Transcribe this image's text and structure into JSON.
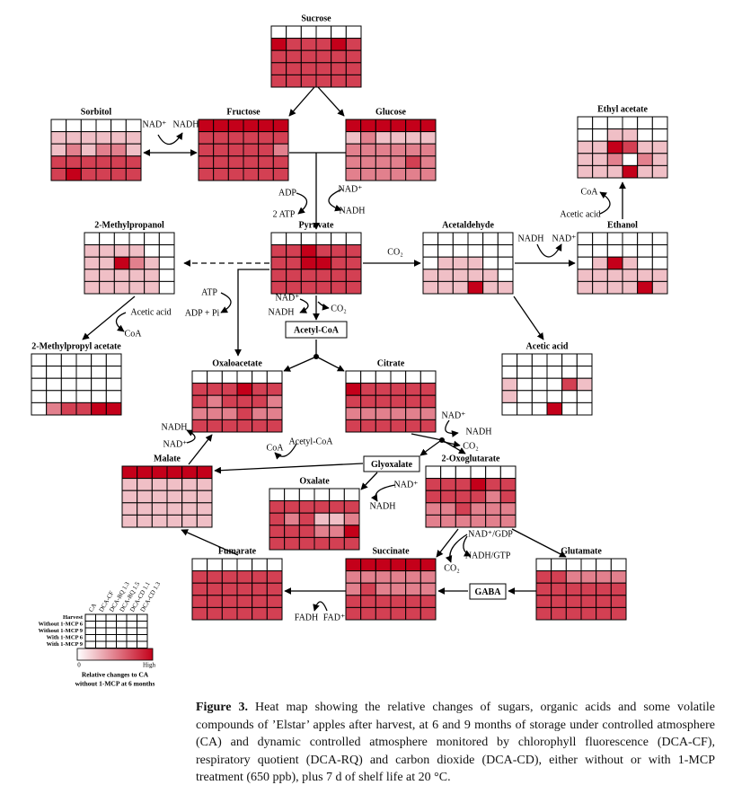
{
  "heatmaps": [
    {
      "name": "Sucrose",
      "levels": [
        [
          0,
          0,
          0,
          0,
          0,
          0
        ],
        [
          4,
          3,
          3,
          3,
          4,
          3
        ],
        [
          3,
          3,
          3,
          3,
          3,
          3
        ],
        [
          3,
          3,
          3,
          3,
          3,
          3
        ],
        [
          3,
          3,
          3,
          3,
          3,
          3
        ]
      ]
    },
    {
      "name": "Sorbitol",
      "levels": [
        [
          0,
          0,
          0,
          0,
          0,
          0
        ],
        [
          1,
          1,
          1,
          1,
          1,
          1
        ],
        [
          1,
          2,
          1,
          2,
          2,
          1
        ],
        [
          3,
          3,
          3,
          3,
          3,
          3
        ],
        [
          3,
          4,
          3,
          3,
          3,
          3
        ]
      ]
    },
    {
      "name": "Fructose",
      "levels": [
        [
          4,
          4,
          4,
          4,
          4,
          4
        ],
        [
          3,
          3,
          3,
          3,
          3,
          3
        ],
        [
          3,
          3,
          3,
          3,
          3,
          2
        ],
        [
          3,
          3,
          3,
          3,
          3,
          3
        ],
        [
          3,
          3,
          3,
          3,
          3,
          3
        ]
      ]
    },
    {
      "name": "Glucose",
      "levels": [
        [
          4,
          4,
          4,
          4,
          4,
          4
        ],
        [
          1,
          2,
          1,
          1,
          1,
          1
        ],
        [
          2,
          2,
          2,
          2,
          2,
          2
        ],
        [
          2,
          2,
          2,
          2,
          3,
          2
        ],
        [
          2,
          2,
          2,
          2,
          2,
          2
        ]
      ]
    },
    {
      "name": "Ethyl acetate",
      "levels": [
        [
          0,
          0,
          0,
          0,
          0,
          0
        ],
        [
          0,
          0,
          1,
          1,
          0,
          0
        ],
        [
          1,
          1,
          4,
          3,
          1,
          1
        ],
        [
          1,
          1,
          2,
          0,
          2,
          1
        ],
        [
          1,
          1,
          1,
          4,
          1,
          1
        ]
      ]
    },
    {
      "name": "2-Methylpropanol",
      "levels": [
        [
          0,
          0,
          0,
          0,
          0,
          0
        ],
        [
          1,
          1,
          1,
          1,
          0,
          0
        ],
        [
          1,
          1,
          4,
          2,
          1,
          0
        ],
        [
          1,
          1,
          1,
          1,
          1,
          0
        ],
        [
          1,
          1,
          1,
          1,
          1,
          0
        ]
      ]
    },
    {
      "name": "Pyruvate",
      "levels": [
        [
          0,
          0,
          0,
          0,
          0,
          0
        ],
        [
          3,
          3,
          4,
          3,
          3,
          3
        ],
        [
          3,
          3,
          4,
          4,
          3,
          3
        ],
        [
          3,
          3,
          3,
          3,
          3,
          3
        ],
        [
          3,
          3,
          3,
          3,
          3,
          3
        ]
      ]
    },
    {
      "name": "Acetaldehyde",
      "levels": [
        [
          0,
          0,
          0,
          0,
          0,
          0
        ],
        [
          0,
          0,
          0,
          0,
          0,
          0
        ],
        [
          0,
          1,
          1,
          1,
          0,
          0
        ],
        [
          1,
          1,
          1,
          1,
          1,
          0
        ],
        [
          1,
          1,
          1,
          4,
          1,
          1
        ]
      ]
    },
    {
      "name": "Ethanol",
      "levels": [
        [
          0,
          0,
          0,
          0,
          0,
          0
        ],
        [
          0,
          0,
          0,
          0,
          0,
          0
        ],
        [
          0,
          1,
          4,
          1,
          0,
          0
        ],
        [
          1,
          1,
          1,
          1,
          1,
          1
        ],
        [
          1,
          1,
          1,
          1,
          4,
          1
        ]
      ]
    },
    {
      "name": "2-Methylpropyl acetate",
      "levels": [
        [
          0,
          0,
          0,
          0,
          0,
          0
        ],
        [
          0,
          0,
          0,
          0,
          0,
          0
        ],
        [
          0,
          0,
          0,
          0,
          0,
          0
        ],
        [
          0,
          0,
          0,
          0,
          0,
          0
        ],
        [
          0,
          2,
          3,
          3,
          4,
          4
        ]
      ]
    },
    {
      "name": "Acetic acid",
      "levels": [
        [
          0,
          0,
          0,
          0,
          0,
          0
        ],
        [
          0,
          0,
          0,
          0,
          0,
          0
        ],
        [
          1,
          0,
          0,
          0,
          3,
          1
        ],
        [
          1,
          0,
          0,
          0,
          0,
          0
        ],
        [
          0,
          0,
          0,
          4,
          0,
          0
        ]
      ]
    },
    {
      "name": "Oxaloacetate",
      "levels": [
        [
          0,
          0,
          0,
          0,
          0,
          0
        ],
        [
          3,
          3,
          3,
          4,
          3,
          3
        ],
        [
          3,
          2,
          3,
          3,
          3,
          2
        ],
        [
          2,
          2,
          2,
          3,
          2,
          2
        ],
        [
          3,
          3,
          3,
          3,
          3,
          3
        ]
      ]
    },
    {
      "name": "Citrate",
      "levels": [
        [
          0,
          0,
          0,
          0,
          0,
          0
        ],
        [
          4,
          3,
          3,
          3,
          3,
          3
        ],
        [
          3,
          3,
          3,
          3,
          3,
          3
        ],
        [
          2,
          2,
          2,
          2,
          2,
          2
        ],
        [
          3,
          3,
          3,
          3,
          3,
          3
        ]
      ]
    },
    {
      "name": "Malate",
      "levels": [
        [
          4,
          4,
          4,
          4,
          4,
          4
        ],
        [
          1,
          1,
          1,
          1,
          1,
          1
        ],
        [
          1,
          1,
          1,
          1,
          1,
          1
        ],
        [
          1,
          1,
          1,
          1,
          1,
          1
        ],
        [
          1,
          1,
          1,
          1,
          1,
          1
        ]
      ]
    },
    {
      "name": "Oxalate",
      "levels": [
        [
          0,
          0,
          0,
          0,
          0,
          0
        ],
        [
          3,
          3,
          3,
          3,
          3,
          3
        ],
        [
          3,
          2,
          3,
          1,
          1,
          2
        ],
        [
          3,
          3,
          3,
          2,
          2,
          4
        ],
        [
          3,
          3,
          3,
          3,
          3,
          3
        ]
      ]
    },
    {
      "name": "2-Oxoglutarate",
      "levels": [
        [
          0,
          0,
          0,
          0,
          0,
          0
        ],
        [
          3,
          3,
          3,
          4,
          3,
          3
        ],
        [
          3,
          3,
          3,
          3,
          2,
          3
        ],
        [
          2,
          2,
          3,
          2,
          2,
          2
        ],
        [
          2,
          2,
          2,
          2,
          2,
          2
        ]
      ]
    },
    {
      "name": "Fumarate",
      "levels": [
        [
          0,
          0,
          0,
          0,
          0,
          0
        ],
        [
          3,
          3,
          3,
          3,
          3,
          3
        ],
        [
          3,
          3,
          3,
          3,
          3,
          3
        ],
        [
          3,
          3,
          3,
          3,
          3,
          3
        ],
        [
          3,
          3,
          3,
          3,
          3,
          3
        ]
      ]
    },
    {
      "name": "Succinate",
      "levels": [
        [
          4,
          4,
          4,
          4,
          4,
          4
        ],
        [
          2,
          2,
          2,
          2,
          2,
          2
        ],
        [
          2,
          3,
          2,
          2,
          2,
          2
        ],
        [
          3,
          3,
          3,
          3,
          3,
          3
        ],
        [
          3,
          3,
          3,
          3,
          3,
          3
        ]
      ]
    },
    {
      "name": "Glutamate",
      "levels": [
        [
          0,
          0,
          0,
          0,
          0,
          0
        ],
        [
          3,
          3,
          2,
          2,
          2,
          2
        ],
        [
          3,
          3,
          3,
          3,
          3,
          3
        ],
        [
          3,
          3,
          3,
          3,
          3,
          3
        ],
        [
          3,
          3,
          3,
          3,
          3,
          3
        ]
      ]
    }
  ],
  "boxes": [
    "Acetyl-CoA",
    "Glyoxalate",
    "GABA"
  ],
  "labels": [
    "NAD⁺",
    "NADH",
    "ADP",
    "2 ATP",
    "NAD⁺",
    "NADH",
    "CO₂",
    "NADH",
    "NAD⁺",
    "CoA",
    "Acetic acid",
    "ATP",
    "ADP + Pi",
    "Acetic acid",
    "CoA",
    "NAD⁺",
    "NADH",
    "CO₂",
    "NADH",
    "NAD⁺",
    "Acetyl-CoA",
    "CoA",
    "NAD⁺",
    "NADH",
    "CO₂",
    "NAD⁺",
    "NADH",
    "NAD⁺/GDP",
    "CO₂",
    "NADH/GTP",
    "FADH",
    "FAD⁺"
  ],
  "legend": {
    "columns": [
      "CA",
      "DCA-CF",
      "DCA-RQ 1.3",
      "DCA-RQ 1.5",
      "DCA-CD 1.1",
      "DCA-CD 1.3"
    ],
    "rows": [
      "Harvest",
      "Without 1-MCP 6",
      "Without 1-MCP 9",
      "With 1-MCP 6",
      "With 1-MCP 9"
    ],
    "scale_low": 0,
    "scale_high": {
      "value": 4,
      "label": "High"
    },
    "color_low": "#ffffff",
    "color_high": "#c4001a",
    "caption": [
      "Relative changes to CA",
      "without 1-MCP at 6 months"
    ]
  },
  "caption": {
    "label": "Figure 3.",
    "text": "Heat map showing the relative changes of sugars, organic acids and some volatile compounds of ’Elstar’ apples after harvest, at 6 and 9 months of storage under controlled atmosphere (CA) and dynamic controlled atmosphere monitored by chlorophyll fluorescence (DCA-CF), respiratory quotient (DCA-RQ) and carbon dioxide (DCA-CD), either without or with 1-MCP treatment (650 ppb), plus 7 d of shelf life at 20 °C."
  }
}
